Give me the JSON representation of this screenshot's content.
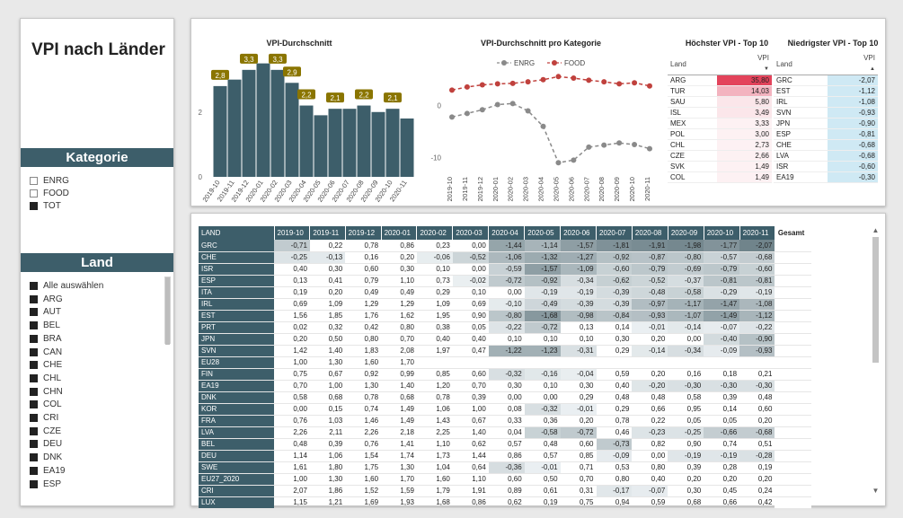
{
  "report": {
    "title": "VPI nach Länder"
  },
  "kategorie": {
    "header": "Kategorie",
    "items": [
      {
        "label": "ENRG",
        "checked": false
      },
      {
        "label": "FOOD",
        "checked": false
      },
      {
        "label": "TOT",
        "checked": true
      }
    ]
  },
  "land_slicer": {
    "header": "Land",
    "items": [
      "Alle auswählen",
      "ARG",
      "AUT",
      "BEL",
      "BRA",
      "CAN",
      "CHE",
      "CHL",
      "CHN",
      "COL",
      "CRI",
      "CZE",
      "DEU",
      "DNK",
      "EA19",
      "ESP"
    ]
  },
  "colors": {
    "accent": "#3d5e6a",
    "bar": "#3d5e6a",
    "label_bg": "#8a7500",
    "food": "#c0413d",
    "enrg": "#8a8a8a"
  },
  "chart_data": [
    {
      "type": "bar",
      "title": "VPI-Durchschnitt",
      "categories": [
        "2019-10",
        "2019-11",
        "2019-12",
        "2020-01",
        "2020-02",
        "2020-03",
        "2020-04",
        "2020-05",
        "2020-06",
        "2020-07",
        "2020-08",
        "2020-09",
        "2020-10",
        "2020-11"
      ],
      "values": [
        2.8,
        3.0,
        3.3,
        3.5,
        3.3,
        2.9,
        2.2,
        1.9,
        2.1,
        2.1,
        2.2,
        2.0,
        2.1,
        1.8
      ],
      "data_labels": [
        "2,8",
        "",
        "3,3",
        "",
        "3,3",
        "2,9",
        "2,2",
        "",
        "2,1",
        "",
        "2,2",
        "",
        "2,1",
        ""
      ],
      "yticks": [
        "0",
        "2"
      ],
      "ylim": [
        0,
        3.6
      ]
    },
    {
      "type": "line",
      "title": "VPI-Durchschnitt pro Kategorie",
      "categories": [
        "2019-10",
        "2019-11",
        "2019-12",
        "2020-01",
        "2020-02",
        "2020-03",
        "2020-04",
        "2020-05",
        "2020-06",
        "2020-07",
        "2020-08",
        "2020-09",
        "2020-10",
        "2020-11"
      ],
      "series": [
        {
          "name": "ENRG",
          "values": [
            -2.2,
            -1.5,
            -0.8,
            0.2,
            0.4,
            -1.0,
            -4.0,
            -11.0,
            -10.5,
            -8.0,
            -7.6,
            -7.2,
            -7.5,
            -8.3
          ]
        },
        {
          "name": "FOOD",
          "values": [
            3.0,
            3.6,
            4.0,
            4.2,
            4.3,
            4.6,
            5.0,
            5.6,
            5.3,
            4.9,
            4.6,
            4.2,
            4.4,
            3.8
          ]
        }
      ],
      "yticks": [
        "0",
        "-10"
      ],
      "ylim": [
        -12,
        6
      ]
    }
  ],
  "top10_high": {
    "title": "Höchster VPI - Top 10",
    "col_land": "Land",
    "col_vpi": "VPI",
    "rows": [
      {
        "land": "ARG",
        "vpi": "35,80"
      },
      {
        "land": "TUR",
        "vpi": "14,03"
      },
      {
        "land": "SAU",
        "vpi": "5,80"
      },
      {
        "land": "ISL",
        "vpi": "3,49"
      },
      {
        "land": "MEX",
        "vpi": "3,33"
      },
      {
        "land": "POL",
        "vpi": "3,00"
      },
      {
        "land": "CHL",
        "vpi": "2,73"
      },
      {
        "land": "CZE",
        "vpi": "2,66"
      },
      {
        "land": "SVK",
        "vpi": "1,49"
      },
      {
        "land": "COL",
        "vpi": "1,49"
      }
    ]
  },
  "top10_low": {
    "title": "Niedrigster VPI - Top 10",
    "col_land": "Land",
    "col_vpi": "VPI",
    "rows": [
      {
        "land": "GRC",
        "vpi": "-2,07"
      },
      {
        "land": "EST",
        "vpi": "-1,12"
      },
      {
        "land": "IRL",
        "vpi": "-1,08"
      },
      {
        "land": "SVN",
        "vpi": "-0,93"
      },
      {
        "land": "JPN",
        "vpi": "-0,90"
      },
      {
        "land": "ESP",
        "vpi": "-0,81"
      },
      {
        "land": "CHE",
        "vpi": "-0,68"
      },
      {
        "land": "LVA",
        "vpi": "-0,68"
      },
      {
        "land": "ISR",
        "vpi": "-0,60"
      },
      {
        "land": "EA19",
        "vpi": "-0,30"
      }
    ]
  },
  "matrix": {
    "headers": [
      "LAND",
      "2019-10",
      "2019-11",
      "2019-12",
      "2020-01",
      "2020-02",
      "2020-03",
      "2020-04",
      "2020-05",
      "2020-06",
      "2020-07",
      "2020-08",
      "2020-09",
      "2020-10",
      "2020-11",
      "Gesamt"
    ],
    "rows": [
      [
        "GRC",
        "-0,71",
        "0,22",
        "0,78",
        "0,86",
        "0,23",
        "0,00",
        "-1,44",
        "-1,14",
        "-1,57",
        "-1,81",
        "-1,91",
        "-1,98",
        "-1,77",
        "-2,07"
      ],
      [
        "CHE",
        "-0,25",
        "-0,13",
        "0,16",
        "0,20",
        "-0,06",
        "-0,52",
        "-1,06",
        "-1,32",
        "-1,27",
        "-0,92",
        "-0,87",
        "-0,80",
        "-0,57",
        "-0,68"
      ],
      [
        "ISR",
        "0,40",
        "0,30",
        "0,60",
        "0,30",
        "0,10",
        "0,00",
        "-0,59",
        "-1,57",
        "-1,09",
        "-0,60",
        "-0,79",
        "-0,69",
        "-0,79",
        "-0,60"
      ],
      [
        "ESP",
        "0,13",
        "0,41",
        "0,79",
        "1,10",
        "0,73",
        "-0,02",
        "-0,72",
        "-0,92",
        "-0,34",
        "-0,62",
        "-0,52",
        "-0,37",
        "-0,81",
        "-0,81"
      ],
      [
        "ITA",
        "0,19",
        "0,20",
        "0,49",
        "0,49",
        "0,29",
        "0,10",
        "0,00",
        "-0,19",
        "-0,19",
        "-0,39",
        "-0,48",
        "-0,58",
        "-0,29",
        "-0,19"
      ],
      [
        "IRL",
        "0,69",
        "1,09",
        "1,29",
        "1,29",
        "1,09",
        "0,69",
        "-0,10",
        "-0,49",
        "-0,39",
        "-0,39",
        "-0,97",
        "-1,17",
        "-1,47",
        "-1,08"
      ],
      [
        "EST",
        "1,56",
        "1,85",
        "1,76",
        "1,62",
        "1,95",
        "0,90",
        "-0,80",
        "-1,68",
        "-0,98",
        "-0,84",
        "-0,93",
        "-1,07",
        "-1,49",
        "-1,12"
      ],
      [
        "PRT",
        "0,02",
        "0,32",
        "0,42",
        "0,80",
        "0,38",
        "0,05",
        "-0,22",
        "-0,72",
        "0,13",
        "0,14",
        "-0,01",
        "-0,14",
        "-0,07",
        "-0,22"
      ],
      [
        "JPN",
        "0,20",
        "0,50",
        "0,80",
        "0,70",
        "0,40",
        "0,40",
        "0,10",
        "0,10",
        "0,10",
        "0,30",
        "0,20",
        "0,00",
        "-0,40",
        "-0,90"
      ],
      [
        "SVN",
        "1,42",
        "1,40",
        "1,83",
        "2,08",
        "1,97",
        "0,47",
        "-1,22",
        "-1,23",
        "-0,31",
        "0,29",
        "-0,14",
        "-0,34",
        "-0,09",
        "-0,93"
      ],
      [
        "EU28",
        "1,00",
        "1,30",
        "1,60",
        "1,70",
        "",
        "",
        "",
        "",
        "",
        "",
        "",
        "",
        "",
        ""
      ],
      [
        "FIN",
        "0,75",
        "0,67",
        "0,92",
        "0,99",
        "0,85",
        "0,60",
        "-0,32",
        "-0,16",
        "-0,04",
        "0,59",
        "0,20",
        "0,16",
        "0,18",
        "0,21"
      ],
      [
        "EA19",
        "0,70",
        "1,00",
        "1,30",
        "1,40",
        "1,20",
        "0,70",
        "0,30",
        "0,10",
        "0,30",
        "0,40",
        "-0,20",
        "-0,30",
        "-0,30",
        "-0,30"
      ],
      [
        "DNK",
        "0,58",
        "0,68",
        "0,78",
        "0,68",
        "0,78",
        "0,39",
        "0,00",
        "0,00",
        "0,29",
        "0,48",
        "0,48",
        "0,58",
        "0,39",
        "0,48"
      ],
      [
        "KOR",
        "0,00",
        "0,15",
        "0,74",
        "1,49",
        "1,06",
        "1,00",
        "0,08",
        "-0,32",
        "-0,01",
        "0,29",
        "0,66",
        "0,95",
        "0,14",
        "0,60"
      ],
      [
        "FRA",
        "0,76",
        "1,03",
        "1,46",
        "1,49",
        "1,43",
        "0,67",
        "0,33",
        "0,36",
        "0,20",
        "0,78",
        "0,22",
        "0,05",
        "0,05",
        "0,20"
      ],
      [
        "LVA",
        "2,26",
        "2,11",
        "2,26",
        "2,18",
        "2,25",
        "1,40",
        "0,04",
        "-0,58",
        "-0,72",
        "0,46",
        "-0,23",
        "-0,25",
        "-0,66",
        "-0,68"
      ],
      [
        "BEL",
        "0,48",
        "0,39",
        "0,76",
        "1,41",
        "1,10",
        "0,62",
        "0,57",
        "0,48",
        "0,60",
        "-0,73",
        "0,82",
        "0,90",
        "0,74",
        "0,51"
      ],
      [
        "DEU",
        "1,14",
        "1,06",
        "1,54",
        "1,74",
        "1,73",
        "1,44",
        "0,86",
        "0,57",
        "0,85",
        "-0,09",
        "0,00",
        "-0,19",
        "-0,19",
        "-0,28"
      ],
      [
        "SWE",
        "1,61",
        "1,80",
        "1,75",
        "1,30",
        "1,04",
        "0,64",
        "-0,36",
        "-0,01",
        "0,71",
        "0,53",
        "0,80",
        "0,39",
        "0,28",
        "0,19"
      ],
      [
        "EU27_2020",
        "1,00",
        "1,30",
        "1,60",
        "1,70",
        "1,60",
        "1,10",
        "0,60",
        "0,50",
        "0,70",
        "0,80",
        "0,40",
        "0,20",
        "0,20",
        "0,20"
      ],
      [
        "CRI",
        "2,07",
        "1,86",
        "1,52",
        "1,59",
        "1,79",
        "1,91",
        "0,89",
        "0,61",
        "0,31",
        "-0,17",
        "-0,07",
        "0,30",
        "0,45",
        "0,24"
      ],
      [
        "LUX",
        "1,15",
        "1,21",
        "1,69",
        "1,93",
        "1,68",
        "0,86",
        "0,62",
        "0,19",
        "0,75",
        "0,94",
        "0,59",
        "0,68",
        "0,66",
        "0,42"
      ]
    ]
  }
}
